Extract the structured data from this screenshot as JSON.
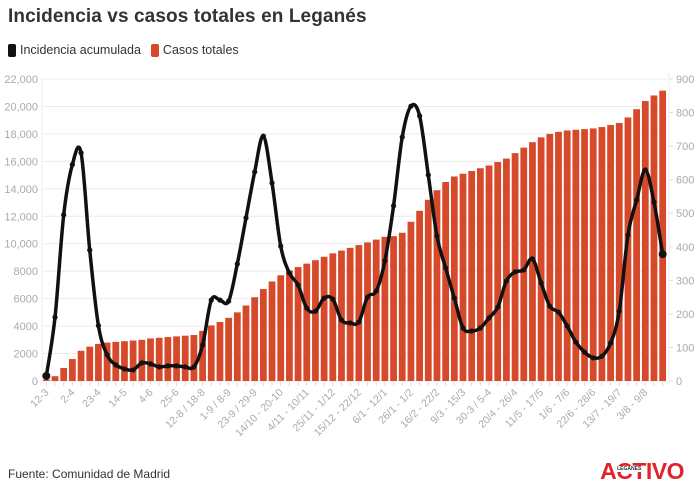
{
  "title": "Incidencia vs casos totales en Leganés",
  "legend": [
    {
      "label": "Incidencia acumulada",
      "color": "#111111"
    },
    {
      "label": "Casos totales",
      "color": "#d64a2b"
    }
  ],
  "footer": {
    "source": "Fuente: Comunidad de Madrid",
    "logo": "ACTIVO",
    "logo_sub": "LEGANÉS"
  },
  "chart_data": {
    "type": "bar+line",
    "title": "Incidencia vs casos totales en Leganés",
    "xlabel": "",
    "ylabel_left": "Casos totales",
    "ylabel_right": "Incidencia acumulada",
    "ylim_left": [
      0,
      22000
    ],
    "ylim_right": [
      0,
      900
    ],
    "yticks_left": [
      "0",
      "2000",
      "4000",
      "6000",
      "8000",
      "10,000",
      "12,000",
      "14,000",
      "16,000",
      "18,000",
      "20,000",
      "22,000"
    ],
    "yticks_right": [
      "0",
      "100",
      "200",
      "300",
      "400",
      "500",
      "600",
      "700",
      "800",
      "900"
    ],
    "grid": true,
    "legend_position": "top-left",
    "x_tick_labels": [
      {
        "index": 0,
        "label": "12-3"
      },
      {
        "index": 3,
        "label": "2-4"
      },
      {
        "index": 6,
        "label": "23-4"
      },
      {
        "index": 9,
        "label": "14-5"
      },
      {
        "index": 12,
        "label": "4-6"
      },
      {
        "index": 15,
        "label": "25-6"
      },
      {
        "index": 18,
        "label": "12-8 / 18-8"
      },
      {
        "index": 21,
        "label": "1-9 / 8-9"
      },
      {
        "index": 24,
        "label": "23-9 / 29-9"
      },
      {
        "index": 27,
        "label": "14/10 - 20-10"
      },
      {
        "index": 30,
        "label": "4/11 - 10/11"
      },
      {
        "index": 33,
        "label": "25/11 - 1/12"
      },
      {
        "index": 36,
        "label": "15/12 - 22/12"
      },
      {
        "index": 39,
        "label": "6/1 - 12/1"
      },
      {
        "index": 42,
        "label": "26/1 - 1/2"
      },
      {
        "index": 45,
        "label": "16/2 - 22/2"
      },
      {
        "index": 48,
        "label": "9/3 - 15/3"
      },
      {
        "index": 51,
        "label": "30-3 / 5-4"
      },
      {
        "index": 54,
        "label": "20/4 - 26/4"
      },
      {
        "index": 57,
        "label": "11/5 - 17/5"
      },
      {
        "index": 60,
        "label": "1/6 - 7/6"
      },
      {
        "index": 63,
        "label": "22/6 - 28/6"
      },
      {
        "index": 66,
        "label": "13/7 - 19/7"
      },
      {
        "index": 69,
        "label": "3/8 - 9/8"
      }
    ],
    "series": [
      {
        "name": "Casos totales",
        "type": "bar",
        "axis": "left",
        "color": "#d64a2b",
        "values": [
          100,
          350,
          950,
          1600,
          2200,
          2500,
          2700,
          2800,
          2850,
          2900,
          2950,
          3000,
          3100,
          3150,
          3200,
          3250,
          3300,
          3350,
          3650,
          4050,
          4300,
          4600,
          5000,
          5500,
          6100,
          6700,
          7250,
          7700,
          8050,
          8300,
          8550,
          8800,
          9050,
          9300,
          9500,
          9700,
          9900,
          10100,
          10300,
          10500,
          10550,
          10800,
          11600,
          12400,
          13200,
          13900,
          14500,
          14900,
          15100,
          15300,
          15500,
          15700,
          15950,
          16200,
          16600,
          17000,
          17400,
          17750,
          18000,
          18150,
          18250,
          18300,
          18350,
          18400,
          18500,
          18650,
          18800,
          19200,
          19800,
          20400,
          20800,
          21150
        ]
      },
      {
        "name": "Incidencia acumulada",
        "type": "line",
        "axis": "right",
        "color": "#111111",
        "values": [
          15,
          190,
          495,
          645,
          680,
          390,
          165,
          78,
          48,
          36,
          33,
          54,
          51,
          42,
          45,
          45,
          42,
          42,
          107,
          241,
          241,
          238,
          349,
          486,
          623,
          730,
          590,
          402,
          322,
          286,
          217,
          208,
          247,
          244,
          182,
          173,
          176,
          250,
          268,
          358,
          522,
          727,
          819,
          790,
          614,
          432,
          337,
          247,
          158,
          149,
          158,
          188,
          220,
          298,
          325,
          331,
          364,
          292,
          223,
          205,
          164,
          116,
          86,
          69,
          74,
          113,
          208,
          435,
          539,
          629,
          533,
          378
        ]
      }
    ]
  }
}
